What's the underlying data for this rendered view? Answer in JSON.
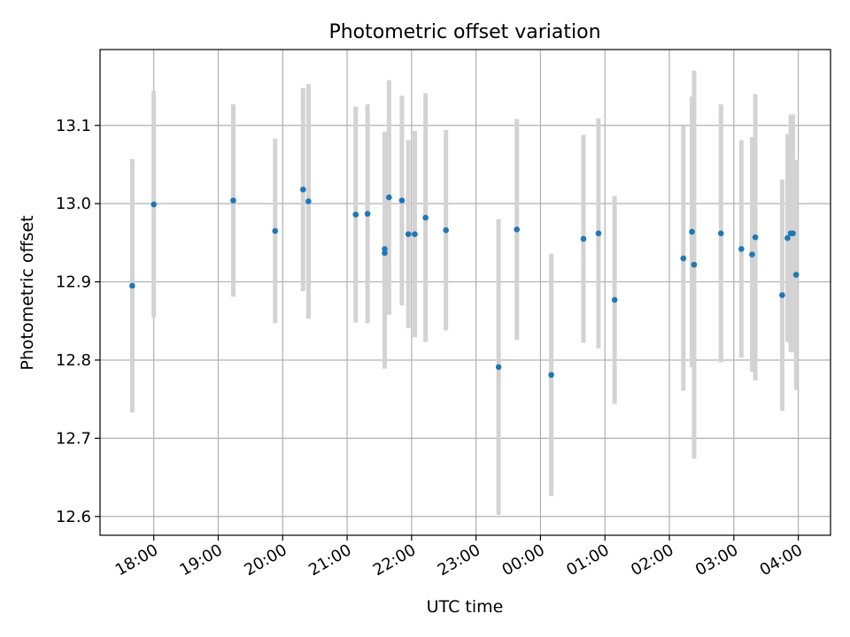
{
  "chart_data": {
    "type": "scatter",
    "title": "Photometric offset variation",
    "xlabel": "UTC time",
    "ylabel": "Photometric offset",
    "x_axis_kind": "time",
    "x_range": [
      "17:10",
      "04:30"
    ],
    "ylim": [
      12.576,
      13.197
    ],
    "x_ticks": [
      "18:00",
      "19:00",
      "20:00",
      "21:00",
      "22:00",
      "23:00",
      "00:00",
      "01:00",
      "02:00",
      "03:00",
      "04:00"
    ],
    "y_ticks": [
      "12.6",
      "12.7",
      "12.8",
      "12.9",
      "13.0",
      "13.1"
    ],
    "grid": true,
    "colors": {
      "points": "#1f77b4",
      "error_bars": "#d3d3d3",
      "grid": "#b0b0b0"
    },
    "series": [
      {
        "points": [
          {
            "t": "17:40",
            "y": 12.895,
            "err": 0.162
          },
          {
            "t": "18:00",
            "y": 12.999,
            "err": 0.145
          },
          {
            "t": "19:14",
            "y": 13.004,
            "err": 0.123
          },
          {
            "t": "19:53",
            "y": 12.965,
            "err": 0.118
          },
          {
            "t": "20:19",
            "y": 13.018,
            "err": 0.13
          },
          {
            "t": "20:24",
            "y": 13.003,
            "err": 0.15
          },
          {
            "t": "21:08",
            "y": 12.986,
            "err": 0.138
          },
          {
            "t": "21:19",
            "y": 12.987,
            "err": 0.14
          },
          {
            "t": "21:35",
            "y": 12.937,
            "err": 0.148
          },
          {
            "t": "21:35",
            "y": 12.942,
            "err": 0.15
          },
          {
            "t": "21:39",
            "y": 13.008,
            "err": 0.15
          },
          {
            "t": "21:51",
            "y": 13.004,
            "err": 0.134
          },
          {
            "t": "21:57",
            "y": 12.961,
            "err": 0.12
          },
          {
            "t": "22:03",
            "y": 12.961,
            "err": 0.132
          },
          {
            "t": "22:13",
            "y": 12.982,
            "err": 0.159
          },
          {
            "t": "22:32",
            "y": 12.966,
            "err": 0.128
          },
          {
            "t": "23:21",
            "y": 12.791,
            "err": 0.189
          },
          {
            "t": "23:38",
            "y": 12.967,
            "err": 0.141
          },
          {
            "t": "00:10",
            "y": 12.781,
            "err": 0.155
          },
          {
            "t": "00:40",
            "y": 12.955,
            "err": 0.133
          },
          {
            "t": "00:54",
            "y": 12.962,
            "err": 0.147
          },
          {
            "t": "01:09",
            "y": 12.877,
            "err": 0.133
          },
          {
            "t": "02:13",
            "y": 12.93,
            "err": 0.169
          },
          {
            "t": "02:21",
            "y": 12.964,
            "err": 0.173
          },
          {
            "t": "02:23",
            "y": 12.922,
            "err": 0.248
          },
          {
            "t": "02:48",
            "y": 12.962,
            "err": 0.165
          },
          {
            "t": "03:07",
            "y": 12.942,
            "err": 0.139
          },
          {
            "t": "03:17",
            "y": 12.935,
            "err": 0.15
          },
          {
            "t": "03:20",
            "y": 12.957,
            "err": 0.183
          },
          {
            "t": "03:45",
            "y": 12.883,
            "err": 0.148
          },
          {
            "t": "03:50",
            "y": 12.956,
            "err": 0.133
          },
          {
            "t": "03:53",
            "y": 12.962,
            "err": 0.152
          },
          {
            "t": "03:55",
            "y": 12.962,
            "err": 0.152
          },
          {
            "t": "03:58",
            "y": 12.909,
            "err": 0.147
          }
        ]
      }
    ]
  }
}
